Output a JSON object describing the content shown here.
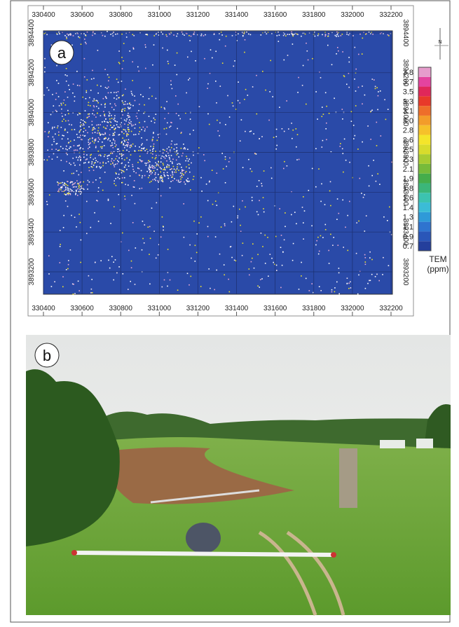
{
  "panel_a": {
    "label": "a",
    "x_ticks": [
      330400,
      330600,
      330800,
      331000,
      331200,
      331400,
      331600,
      331800,
      332000,
      332200
    ],
    "y_ticks": [
      3893200,
      3893400,
      3893600,
      3893800,
      3894000,
      3894200,
      3894400
    ],
    "north": "N",
    "colorbar": {
      "title": "TEM",
      "unit": "(ppm)",
      "ticks": [
        0.7,
        0.9,
        1.1,
        1.3,
        1.4,
        1.6,
        1.8,
        1.9,
        2.1,
        2.3,
        2.5,
        2.6,
        2.8,
        {
          "value": 3,
          "label": "3.0"
        },
        3.1,
        3.3,
        3.5,
        3.7,
        3.8
      ],
      "colors": [
        "#243f9c",
        "#2a56b8",
        "#2f74cf",
        "#2f9ad8",
        "#3bbcd6",
        "#3cc3b0",
        "#3bb679",
        "#45ad4b",
        "#77bb3a",
        "#a8cc32",
        "#d8dc2c",
        "#f4e52a",
        "#f6c12a",
        "#f39c2a",
        "#ee6e2a",
        "#e8392a",
        "#e0275a",
        "#e4439f",
        "#e69ccc"
      ]
    }
  },
  "panel_b": {
    "label": "b"
  }
}
